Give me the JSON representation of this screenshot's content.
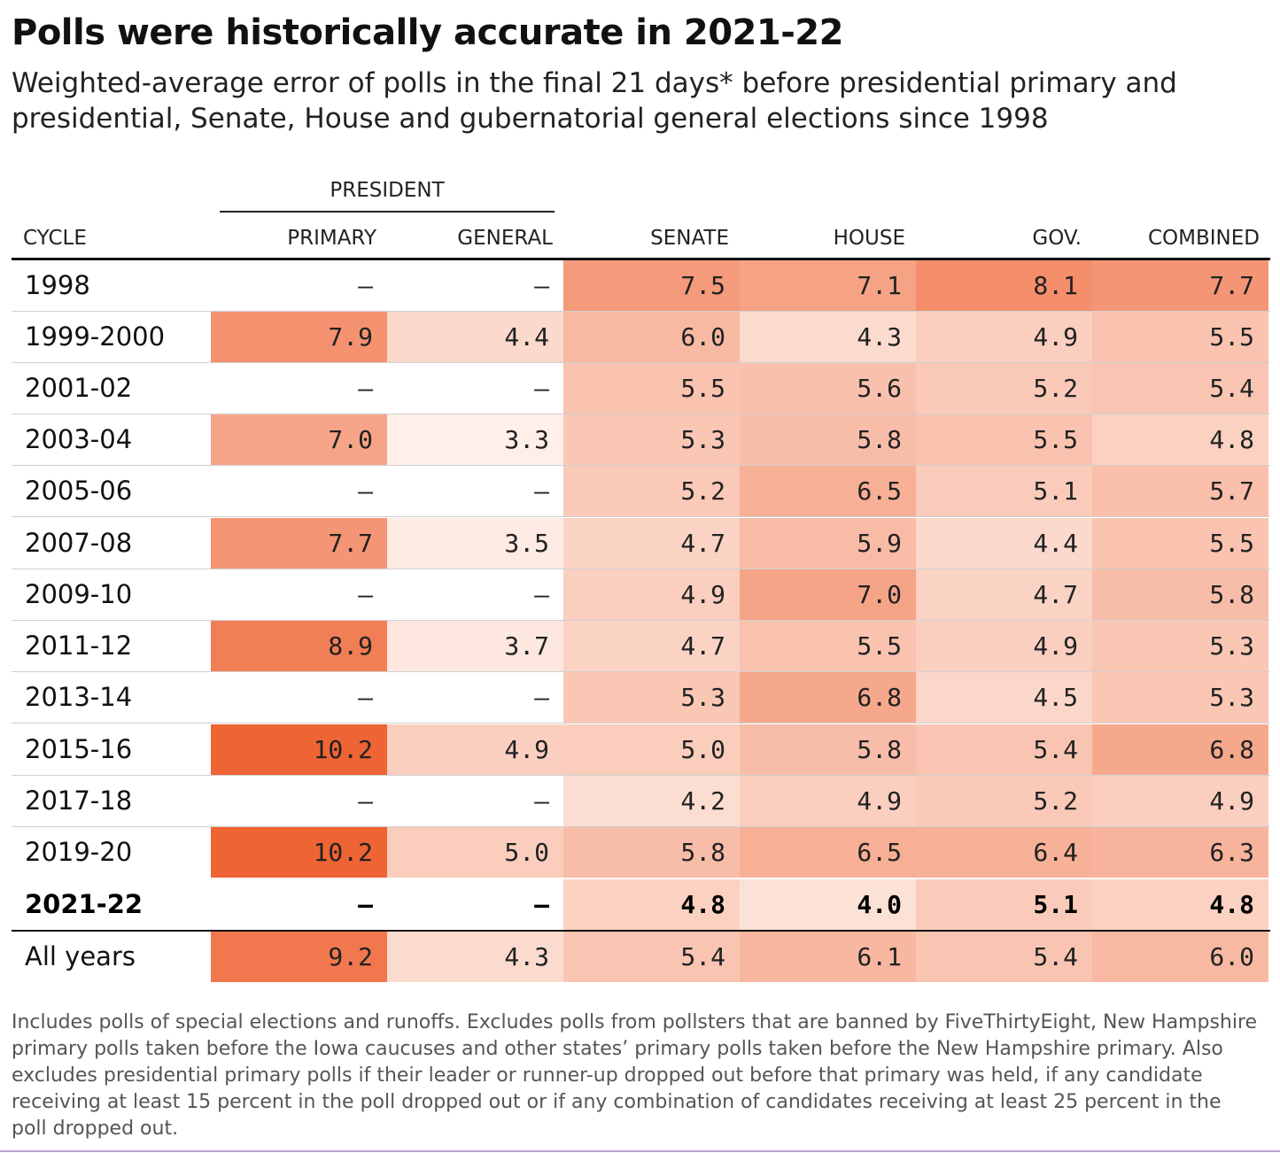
{
  "title": "Polls were historically accurate in 2021-22",
  "subtitle": "Weighted-average error of polls in the final 21 days* before presidential primary and presidential, Senate, House and gubernatorial general elections since 1998",
  "footnote": "Includes polls of special elections and runoffs. Excludes polls from pollsters that are banned by FiveThirtyEight, New Hampshire primary polls taken before the Iowa caucuses and other states’ primary polls taken before the New Hampshire primary. Also excludes presidential primary polls if their leader or runner-up dropped out before that primary was held, if any candidate receiving at least 15 percent in the poll dropped out or if any combination of candidates receiving at least 25 percent in the poll dropped out.",
  "colors": {
    "heat_low": "#fef1ec",
    "heat_high": "#ef6434"
  },
  "chart_data": {
    "type": "table",
    "group_header": "PRESIDENT",
    "columns": [
      "CYCLE",
      "PRIMARY",
      "GENERAL",
      "SENATE",
      "HOUSE",
      "GOV.",
      "COMBINED"
    ],
    "rows": [
      {
        "cycle": "1998",
        "values": [
          "–",
          "–",
          "7.5",
          "7.1",
          "8.1",
          "7.7"
        ]
      },
      {
        "cycle": "1999-2000",
        "values": [
          "7.9",
          "4.4",
          "6.0",
          "4.3",
          "4.9",
          "5.5"
        ]
      },
      {
        "cycle": "2001-02",
        "values": [
          "–",
          "–",
          "5.5",
          "5.6",
          "5.2",
          "5.4"
        ]
      },
      {
        "cycle": "2003-04",
        "values": [
          "7.0",
          "3.3",
          "5.3",
          "5.8",
          "5.5",
          "4.8"
        ]
      },
      {
        "cycle": "2005-06",
        "values": [
          "–",
          "–",
          "5.2",
          "6.5",
          "5.1",
          "5.7"
        ]
      },
      {
        "cycle": "2007-08",
        "values": [
          "7.7",
          "3.5",
          "4.7",
          "5.9",
          "4.4",
          "5.5"
        ]
      },
      {
        "cycle": "2009-10",
        "values": [
          "–",
          "–",
          "4.9",
          "7.0",
          "4.7",
          "5.8"
        ]
      },
      {
        "cycle": "2011-12",
        "values": [
          "8.9",
          "3.7",
          "4.7",
          "5.5",
          "4.9",
          "5.3"
        ]
      },
      {
        "cycle": "2013-14",
        "values": [
          "–",
          "–",
          "5.3",
          "6.8",
          "4.5",
          "5.3"
        ]
      },
      {
        "cycle": "2015-16",
        "values": [
          "10.2",
          "4.9",
          "5.0",
          "5.8",
          "5.4",
          "6.8"
        ]
      },
      {
        "cycle": "2017-18",
        "values": [
          "–",
          "–",
          "4.2",
          "4.9",
          "5.2",
          "4.9"
        ]
      },
      {
        "cycle": "2019-20",
        "values": [
          "10.2",
          "5.0",
          "5.8",
          "6.5",
          "6.4",
          "6.3"
        ]
      },
      {
        "cycle": "2021-22",
        "values": [
          "–",
          "–",
          "4.8",
          "4.0",
          "5.1",
          "4.8"
        ],
        "bold": true
      },
      {
        "cycle": "All years",
        "values": [
          "9.2",
          "4.3",
          "5.4",
          "6.1",
          "5.4",
          "6.0"
        ]
      }
    ]
  }
}
